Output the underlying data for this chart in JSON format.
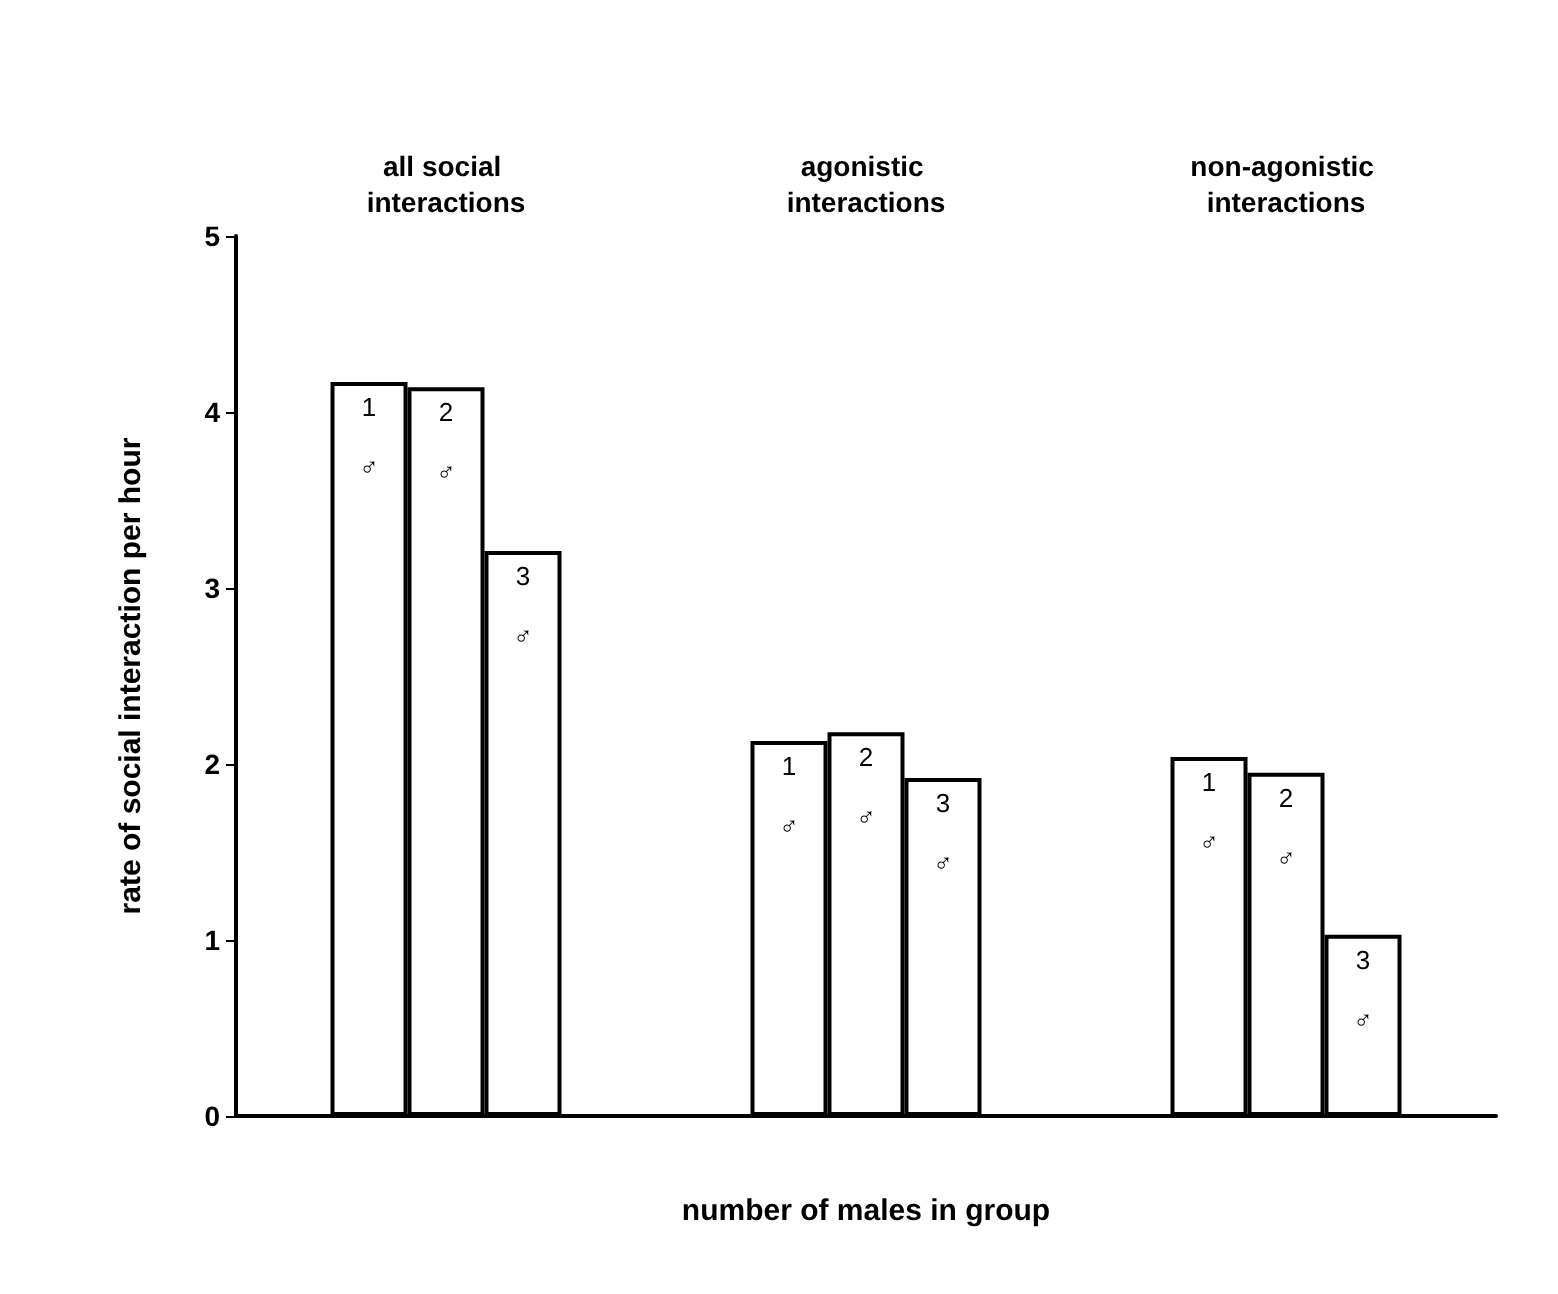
{
  "chart_data": {
    "type": "bar",
    "categories": [
      "all social interactions",
      "agonistic interactions",
      "non-agonistic interactions"
    ],
    "series": [
      {
        "name": "1 ♂",
        "color": "#ffffff",
        "values": [
          4.17,
          2.13,
          2.04
        ]
      },
      {
        "name": "2 ♂",
        "color": "#ffffff",
        "values": [
          4.14,
          2.18,
          1.95
        ]
      },
      {
        "name": "3 ♂",
        "color": "#ffffff",
        "values": [
          3.21,
          1.92,
          1.03
        ]
      }
    ],
    "xlabel": "number of males in group",
    "ylabel": "rate of social interaction per hour",
    "ylim": [
      0,
      5
    ],
    "yticks": [
      0,
      1,
      2,
      3,
      4,
      5
    ],
    "grid": false,
    "legend": false
  }
}
